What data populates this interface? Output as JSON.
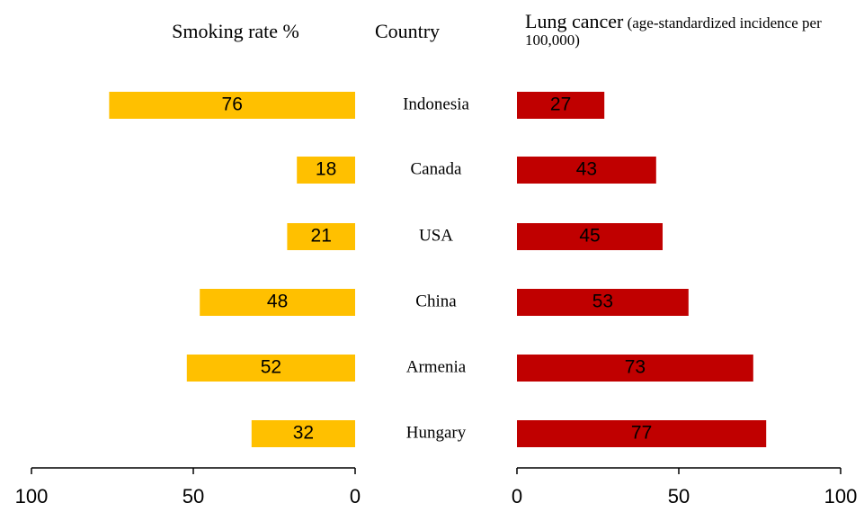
{
  "chart_data": {
    "type": "butterfly",
    "category_label": "Country",
    "categories": [
      "Indonesia",
      "Canada",
      "USA",
      "China",
      "Armenia",
      "Hungary"
    ],
    "series": [
      {
        "name": "Smoking rate %",
        "color": "#ffc000",
        "values": [
          76,
          18,
          21,
          48,
          52,
          32
        ],
        "xlim": [
          0,
          100
        ],
        "xticks": [
          0,
          50,
          100
        ]
      },
      {
        "name": "Lung cancer",
        "subtitle": "(age-standardized incidence per 100,000)",
        "color": "#c00000",
        "values": [
          27,
          43,
          45,
          53,
          73,
          77
        ],
        "xlim": [
          0,
          100
        ],
        "xticks": [
          0,
          50,
          100
        ]
      }
    ]
  }
}
